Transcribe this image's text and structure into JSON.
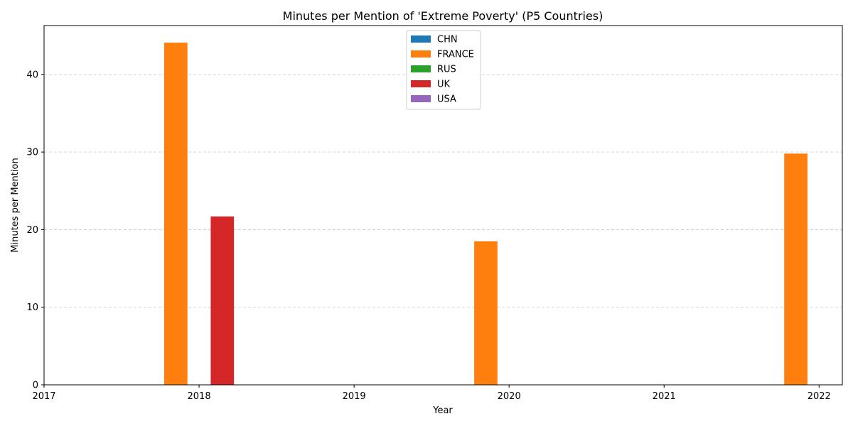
{
  "chart_data": {
    "type": "bar",
    "title": "Minutes per Mention of 'Extreme Poverty' (P5 Countries)",
    "xlabel": "Year",
    "ylabel": "Minutes per Mention",
    "x_ticks": [
      "2017",
      "2018",
      "2019",
      "2020",
      "2021",
      "2022"
    ],
    "x_range": [
      2017,
      2022.15
    ],
    "y_ticks": [
      0,
      10,
      20,
      30,
      40
    ],
    "ylim": [
      0,
      46.3
    ],
    "grid": "y-dashed",
    "legend_position": "top-center",
    "bar_width_years": 0.15,
    "series": [
      {
        "name": "CHN",
        "color": "#1f77b4",
        "offset": -0.3,
        "points": []
      },
      {
        "name": "FRANCE",
        "color": "#ff7f0e",
        "offset": -0.15,
        "points": [
          {
            "x": 2018,
            "y": 44.1
          },
          {
            "x": 2020,
            "y": 18.5
          },
          {
            "x": 2022,
            "y": 29.8
          }
        ]
      },
      {
        "name": "RUS",
        "color": "#2ca02c",
        "offset": 0.0,
        "points": []
      },
      {
        "name": "UK",
        "color": "#d62728",
        "offset": 0.15,
        "points": [
          {
            "x": 2018,
            "y": 21.7
          }
        ]
      },
      {
        "name": "USA",
        "color": "#9467bd",
        "offset": 0.3,
        "points": []
      }
    ]
  }
}
